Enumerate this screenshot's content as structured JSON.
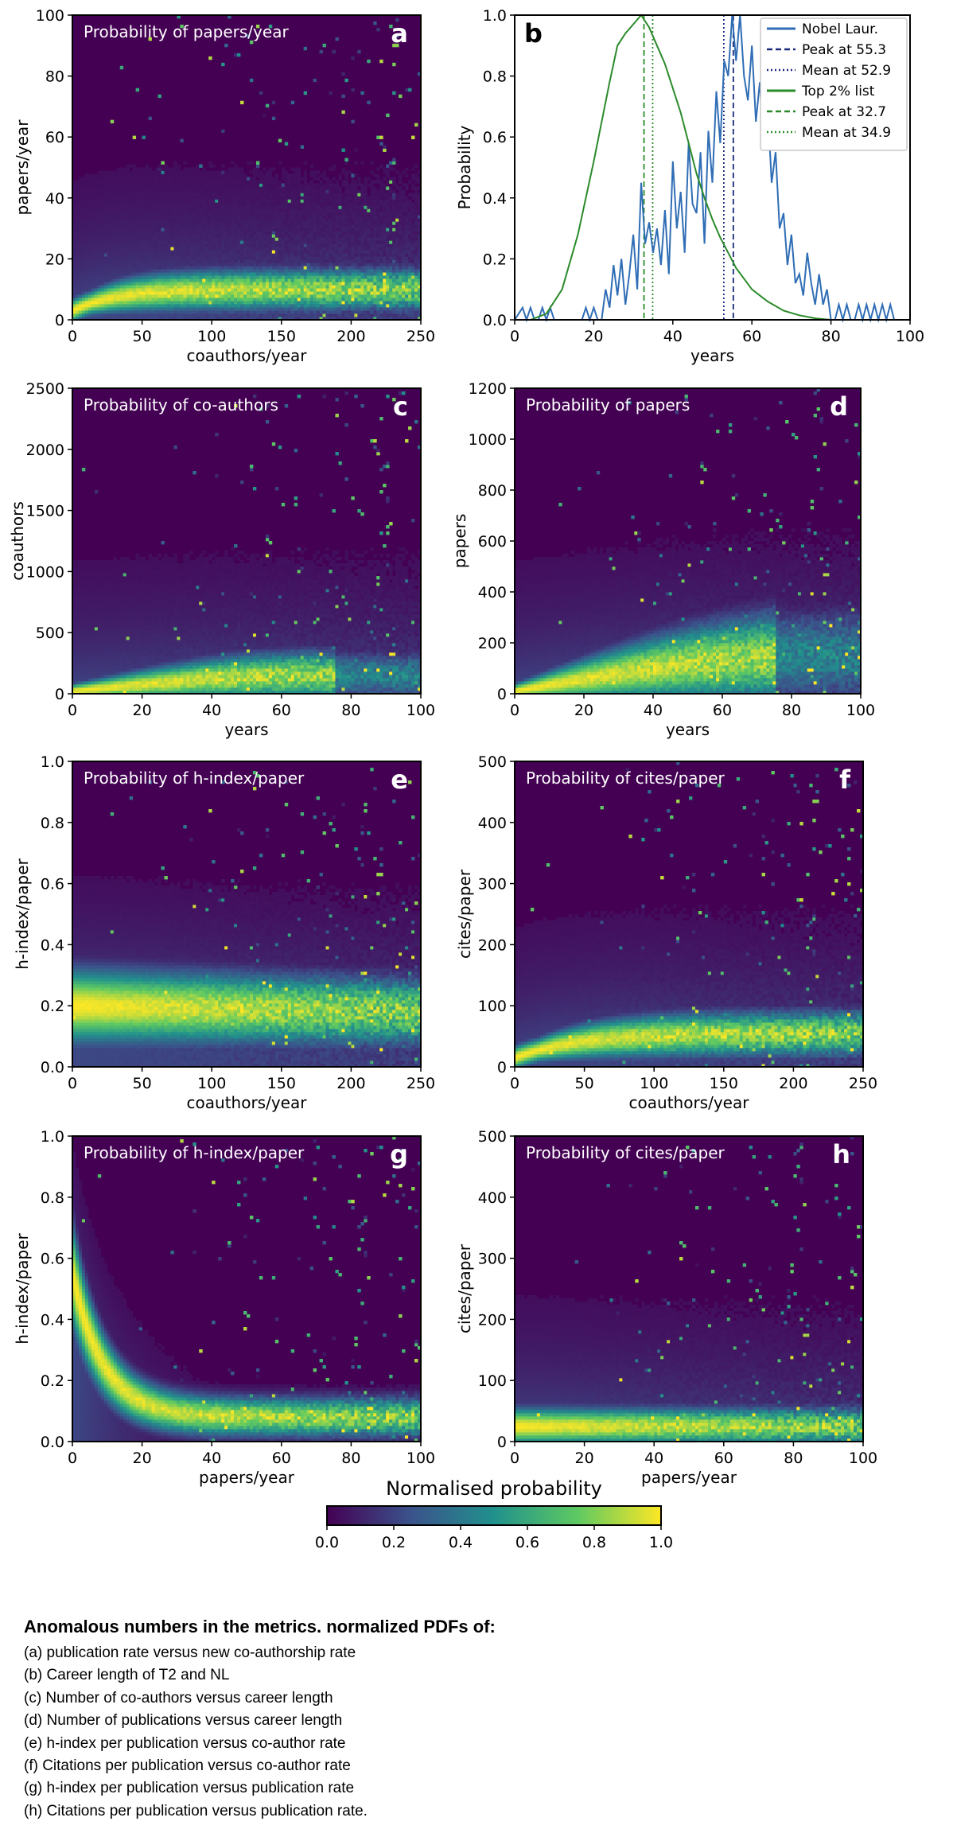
{
  "chart_data": [
    {
      "panel": "a",
      "type": "heatmap",
      "title": "Probability of papers/year",
      "xlabel": "coauthors/year",
      "ylabel": "papers/year",
      "xlim": [
        0,
        250
      ],
      "ylim": [
        0,
        100
      ],
      "xticks": [
        "0",
        "50",
        "100",
        "150",
        "200",
        "250"
      ],
      "yticks": [
        "0",
        "20",
        "40",
        "60",
        "80",
        "100"
      ],
      "density_shape": "ridge",
      "ridge_peak_y": [
        3,
        10
      ],
      "ridge_knee_x": 60
    },
    {
      "panel": "b",
      "type": "line",
      "xlabel": "years",
      "ylabel": "Probability",
      "xlim": [
        0,
        100
      ],
      "ylim": [
        0,
        1.0
      ],
      "xticks": [
        "0",
        "20",
        "40",
        "60",
        "80",
        "100"
      ],
      "yticks": [
        "0.0",
        "0.2",
        "0.4",
        "0.6",
        "0.8",
        "1.0"
      ],
      "legend_position": "top-right",
      "legend": [
        "Nobel Laur.",
        "Peak at 55.3",
        "Mean at 52.9",
        "Top 2% list",
        "Peak at 32.7",
        "Mean at 34.9"
      ],
      "series": [
        {
          "name": "Nobel Laur.",
          "color": "#2f6db5",
          "x": [
            0,
            2,
            3,
            4,
            5,
            6,
            7,
            8,
            9,
            10,
            11,
            12,
            14,
            16,
            17,
            18,
            19,
            20,
            21,
            22,
            23,
            24,
            25,
            26,
            27,
            28,
            29,
            30,
            31,
            32,
            33,
            34,
            35,
            36,
            37,
            38,
            39,
            40,
            41,
            42,
            43,
            44,
            45,
            46,
            47,
            48,
            49,
            50,
            51,
            52,
            53,
            54,
            55,
            56,
            57,
            58,
            59,
            60,
            61,
            62,
            63,
            64,
            65,
            66,
            67,
            68,
            69,
            70,
            71,
            72,
            73,
            74,
            75,
            76,
            77,
            78,
            79,
            80,
            81,
            82,
            83,
            84,
            85,
            86,
            87,
            88,
            89,
            90,
            91,
            92,
            93,
            94,
            95,
            96,
            97
          ],
          "y": [
            0,
            0.04,
            0,
            0.04,
            0,
            0,
            0.04,
            0,
            0.04,
            0,
            0,
            0,
            0,
            0,
            0,
            0.04,
            0,
            0.04,
            0,
            0,
            0.1,
            0.04,
            0.18,
            0.08,
            0.2,
            0.05,
            0.15,
            0.28,
            0.1,
            0.45,
            0.25,
            0.32,
            0.22,
            0.3,
            0.18,
            0.36,
            0.15,
            0.52,
            0.3,
            0.42,
            0.22,
            0.58,
            0.38,
            0.35,
            0.55,
            0.25,
            0.62,
            0.45,
            0.75,
            0.58,
            0.85,
            0.8,
            1.0,
            0.85,
            1.0,
            0.8,
            0.72,
            0.9,
            0.65,
            0.78,
            0.58,
            0.7,
            0.45,
            0.55,
            0.3,
            0.35,
            0.18,
            0.28,
            0.12,
            0.15,
            0.08,
            0.22,
            0.12,
            0.05,
            0.15,
            0.05,
            0.1,
            0,
            0,
            0.05,
            0,
            0.05,
            0,
            0,
            0.05,
            0,
            0.05,
            0,
            0.05,
            0,
            0.05,
            0,
            0.05,
            0,
            0
          ]
        },
        {
          "name": "Top 2% list",
          "color": "#2a8a2a",
          "x": [
            0,
            4,
            8,
            12,
            16,
            20,
            24,
            26,
            28,
            30,
            32,
            34,
            36,
            38,
            40,
            42,
            44,
            46,
            48,
            50,
            52,
            54,
            56,
            60,
            64,
            68,
            72,
            76,
            80
          ],
          "y": [
            0,
            0,
            0.02,
            0.1,
            0.28,
            0.52,
            0.78,
            0.9,
            0.94,
            0.97,
            1.0,
            0.96,
            0.9,
            0.84,
            0.76,
            0.68,
            0.58,
            0.48,
            0.4,
            0.33,
            0.27,
            0.22,
            0.17,
            0.1,
            0.06,
            0.03,
            0.015,
            0.005,
            0
          ]
        }
      ],
      "vlines": [
        {
          "label": "Peak at 55.3",
          "x": 55.3,
          "style": "dashed",
          "color": "#1a2a7a"
        },
        {
          "label": "Mean at 52.9",
          "x": 52.9,
          "style": "dotted",
          "color": "#1a2a7a"
        },
        {
          "label": "Peak at 32.7",
          "x": 32.7,
          "style": "dashed",
          "color": "#2a8a2a"
        },
        {
          "label": "Mean at 34.9",
          "x": 34.9,
          "style": "dotted",
          "color": "#2a8a2a"
        }
      ]
    },
    {
      "panel": "c",
      "type": "heatmap",
      "title": "Probability of co-authors",
      "xlabel": "years",
      "ylabel": "coauthors",
      "xlim": [
        0,
        100
      ],
      "ylim": [
        0,
        2500
      ],
      "xticks": [
        "0",
        "20",
        "40",
        "60",
        "80",
        "100"
      ],
      "yticks": [
        "0",
        "500",
        "1000",
        "1500",
        "2000",
        "2500"
      ],
      "density_shape": "hump",
      "ridge_peak_y": [
        20,
        150
      ],
      "peak_x": 35
    },
    {
      "panel": "d",
      "type": "heatmap",
      "title": "Probability of papers",
      "xlabel": "years",
      "ylabel": "papers",
      "xlim": [
        0,
        100
      ],
      "ylim": [
        0,
        1200
      ],
      "xticks": [
        "0",
        "20",
        "40",
        "60",
        "80",
        "100"
      ],
      "yticks": [
        "0",
        "200",
        "400",
        "600",
        "800",
        "1000",
        "1200"
      ],
      "density_shape": "hump",
      "ridge_peak_y": [
        10,
        150
      ],
      "peak_x": 45
    },
    {
      "panel": "e",
      "type": "heatmap",
      "title": "Probability of h-index/paper",
      "xlabel": "coauthors/year",
      "ylabel": "h-index/paper",
      "xlim": [
        0,
        250
      ],
      "ylim": [
        0,
        1.0
      ],
      "xticks": [
        "0",
        "50",
        "100",
        "150",
        "200",
        "250"
      ],
      "yticks": [
        "0.0",
        "0.2",
        "0.4",
        "0.6",
        "0.8",
        "1.0"
      ],
      "density_shape": "flat",
      "ridge_peak_y": [
        0.2,
        0.18
      ]
    },
    {
      "panel": "f",
      "type": "heatmap",
      "title": "Probability of cites/paper",
      "xlabel": "coauthors/year",
      "ylabel": "cites/paper",
      "xlim": [
        0,
        250
      ],
      "ylim": [
        0,
        500
      ],
      "xticks": [
        "0",
        "50",
        "100",
        "150",
        "200",
        "250"
      ],
      "yticks": [
        "0",
        "100",
        "200",
        "300",
        "400",
        "500"
      ],
      "density_shape": "ridge",
      "ridge_peak_y": [
        15,
        55
      ],
      "ridge_knee_x": 90
    },
    {
      "panel": "g",
      "type": "heatmap",
      "title": "Probability of h-index/paper",
      "xlabel": "papers/year",
      "ylabel": "h-index/paper",
      "xlim": [
        0,
        100
      ],
      "ylim": [
        0,
        1.0
      ],
      "xticks": [
        "0",
        "20",
        "40",
        "60",
        "80",
        "100"
      ],
      "yticks": [
        "0.0",
        "0.2",
        "0.4",
        "0.6",
        "0.8",
        "1.0"
      ],
      "density_shape": "decay",
      "ridge_peak_y": [
        0.55,
        0.08
      ]
    },
    {
      "panel": "h",
      "type": "heatmap",
      "title": "Probability of cites/paper",
      "xlabel": "papers/year",
      "ylabel": "cites/paper",
      "xlim": [
        0,
        100
      ],
      "ylim": [
        0,
        500
      ],
      "xticks": [
        "0",
        "20",
        "40",
        "60",
        "80",
        "100"
      ],
      "yticks": [
        "0",
        "100",
        "200",
        "300",
        "400",
        "500"
      ],
      "density_shape": "flat",
      "ridge_peak_y": [
        25,
        25
      ]
    }
  ],
  "colorbar": {
    "title": "Normalised probability",
    "ticks": [
      "0.0",
      "0.2",
      "0.4",
      "0.6",
      "0.8",
      "1.0"
    ],
    "colormap": [
      "#440154",
      "#3b528b",
      "#21918c",
      "#5ec962",
      "#fde725"
    ]
  },
  "caption": {
    "title": "Anomalous numbers in the metrics. normalized PDFs of:",
    "lines": [
      "(a) publication rate versus new co-authorship rate",
      "(b) Career length of T2 and NL",
      "(c) Number of co-authors versus career length",
      "(d) Number of publications versus career length",
      "(e) h-index per publication versus co-author rate",
      "(f) Citations per publication versus co-author rate",
      "(g) h-index per publication versus publication rate",
      "(h) Citations per publication versus publication rate."
    ]
  }
}
